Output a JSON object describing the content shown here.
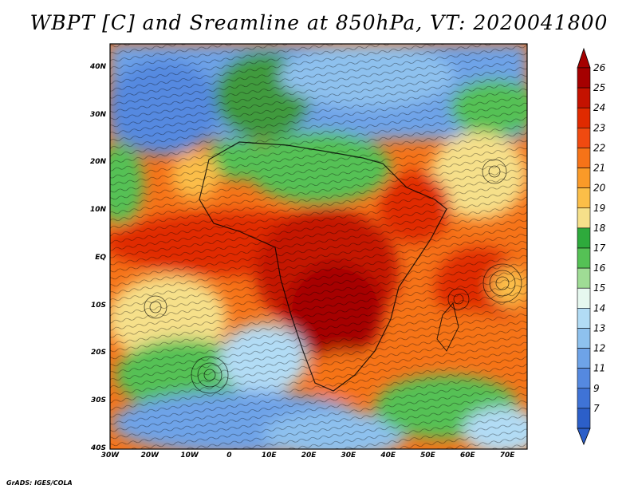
{
  "title": "WBPT [C] and Sreamline at 850hPa, VT: 2020041800",
  "footer": "GrADS: IGES/COLA",
  "map": {
    "lon_range": [
      -30,
      75
    ],
    "lat_range": [
      -40,
      45
    ],
    "lat_labels": [
      "40N",
      "30N",
      "20N",
      "10N",
      "EQ",
      "10S",
      "20S",
      "30S",
      "40S"
    ],
    "lon_labels": [
      "30W",
      "20W",
      "10W",
      "0",
      "10E",
      "20E",
      "30E",
      "40E",
      "50E",
      "60E",
      "70E"
    ]
  },
  "colorbar": {
    "labels": [
      "26",
      "25",
      "24",
      "23",
      "22",
      "21",
      "20",
      "19",
      "18",
      "17",
      "16",
      "15",
      "14",
      "13",
      "12",
      "11",
      "9",
      "7"
    ],
    "colors": [
      "#a50000",
      "#c41200",
      "#e02a00",
      "#f04a10",
      "#f67318",
      "#fa9a28",
      "#fbbe48",
      "#f6e08a",
      "#2eaa3c",
      "#55c155",
      "#9fdc95",
      "#e6f8ef",
      "#b2dcf5",
      "#8ec1ee",
      "#6ea3e8",
      "#5589e0",
      "#3f73d6",
      "#2c5fc9"
    ]
  }
}
